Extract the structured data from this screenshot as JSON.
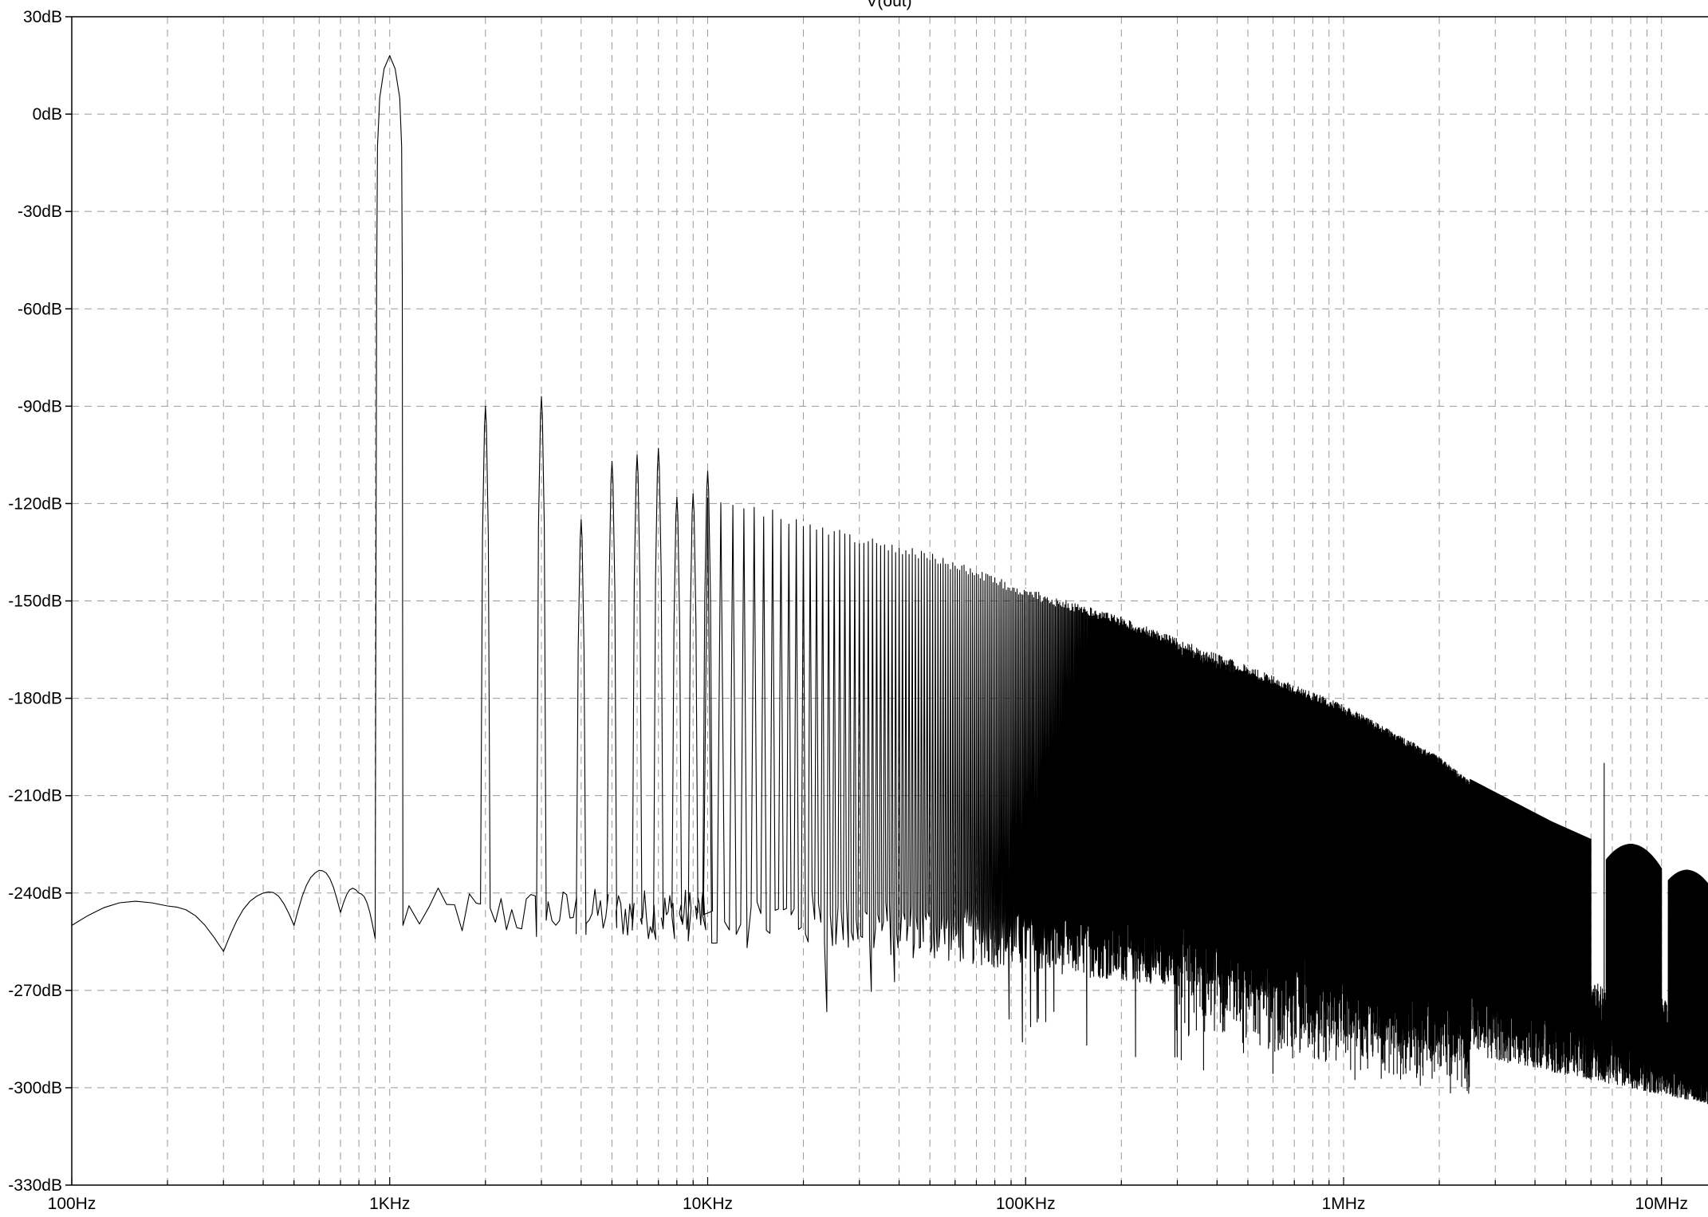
{
  "chart_data": {
    "type": "line",
    "title": "V(out)",
    "xlabel": "",
    "ylabel": "",
    "x_scale": "log",
    "xlim": [
      100,
      14000000
    ],
    "ylim": [
      -330,
      30
    ],
    "grid": true,
    "grid_style": "dashed",
    "x_ticks": [
      {
        "value": 100,
        "label": "100Hz"
      },
      {
        "value": 1000,
        "label": "1KHz"
      },
      {
        "value": 10000,
        "label": "10KHz"
      },
      {
        "value": 100000,
        "label": "100KHz"
      },
      {
        "value": 1000000,
        "label": "1MHz"
      },
      {
        "value": 10000000,
        "label": "10MHz"
      }
    ],
    "y_ticks": [
      {
        "value": 30,
        "label": "30dB"
      },
      {
        "value": 0,
        "label": "0dB"
      },
      {
        "value": -30,
        "label": "-30dB"
      },
      {
        "value": -60,
        "label": "-60dB"
      },
      {
        "value": -90,
        "label": "-90dB"
      },
      {
        "value": -120,
        "label": "-120dB"
      },
      {
        "value": -150,
        "label": "-150dB"
      },
      {
        "value": -180,
        "label": "-180dB"
      },
      {
        "value": -210,
        "label": "-210dB"
      },
      {
        "value": -240,
        "label": "-240dB"
      },
      {
        "value": -270,
        "label": "-270dB"
      },
      {
        "value": -300,
        "label": "-300dB"
      },
      {
        "value": -330,
        "label": "-330dB"
      }
    ],
    "series": [
      {
        "color": "#000000",
        "fundamental": {
          "freq": 1000,
          "peak_db": 18
        },
        "harmonic_peaks": [
          {
            "freq": 2000,
            "db": -90
          },
          {
            "freq": 3000,
            "db": -87
          },
          {
            "freq": 4000,
            "db": -125
          },
          {
            "freq": 5000,
            "db": -107
          },
          {
            "freq": 6000,
            "db": -105
          },
          {
            "freq": 7000,
            "db": -103
          },
          {
            "freq": 8000,
            "db": -118
          },
          {
            "freq": 9000,
            "db": -117
          },
          {
            "freq": 10000,
            "db": -110
          },
          {
            "freq": 20000,
            "db": -125
          },
          {
            "freq": 50000,
            "db": -135
          },
          {
            "freq": 100000,
            "db": -146
          },
          {
            "freq": 200000,
            "db": -155
          },
          {
            "freq": 500000,
            "db": -170
          },
          {
            "freq": 1000000,
            "db": -182
          },
          {
            "freq": 2000000,
            "db": -198
          },
          {
            "freq": 3000000,
            "db": -212
          },
          {
            "freq": 5000000,
            "db": -218
          }
        ],
        "noise_floor": [
          {
            "freq": 100,
            "db": -250
          },
          {
            "freq": 200,
            "db": -244
          },
          {
            "freq": 300,
            "db": -258
          },
          {
            "freq": 400,
            "db": -240
          },
          {
            "freq": 500,
            "db": -250
          },
          {
            "freq": 600,
            "db": -233
          },
          {
            "freq": 700,
            "db": -246
          },
          {
            "freq": 800,
            "db": -240
          },
          {
            "freq": 900,
            "db": -254
          }
        ],
        "hf_lobes": [
          {
            "freq": 4500000,
            "db": -218
          },
          {
            "freq": 8000000,
            "db": -225
          },
          {
            "freq": 12000000,
            "db": -233
          }
        ],
        "spur": {
          "freq": 6600000,
          "db": -200
        }
      }
    ]
  }
}
